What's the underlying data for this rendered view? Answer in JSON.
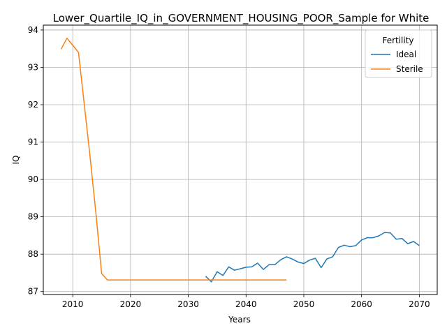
{
  "chart_data": {
    "type": "line",
    "title": "Lower_Quartile_IQ_in_GOVERNMENT_HOUSING_POOR_Sample for White",
    "xlabel": "Years",
    "ylabel": "IQ",
    "xlim": [
      2004.9,
      2073.1
    ],
    "ylim": [
      86.92,
      94.13
    ],
    "x_ticks": [
      2010,
      2020,
      2030,
      2040,
      2050,
      2060,
      2070
    ],
    "y_ticks": [
      87,
      88,
      89,
      90,
      91,
      92,
      93,
      94
    ],
    "grid": true,
    "legend": {
      "title": "Fertility",
      "placement": "upper right"
    },
    "series": [
      {
        "name": "Ideal",
        "color": "#1f77b4",
        "x": [
          2033,
          2034,
          2035,
          2036,
          2037,
          2038,
          2039,
          2040,
          2041,
          2042,
          2043,
          2044,
          2045,
          2046,
          2047,
          2048,
          2049,
          2050,
          2051,
          2052,
          2053,
          2054,
          2055,
          2056,
          2057,
          2058,
          2059,
          2060,
          2061,
          2062,
          2063,
          2064,
          2065,
          2066,
          2067,
          2068,
          2069,
          2070
        ],
        "y": [
          87.41,
          87.26,
          87.53,
          87.43,
          87.66,
          87.57,
          87.61,
          87.65,
          87.66,
          87.76,
          87.59,
          87.72,
          87.72,
          87.85,
          87.93,
          87.87,
          87.79,
          87.75,
          87.84,
          87.89,
          87.64,
          87.87,
          87.93,
          88.18,
          88.24,
          88.2,
          88.23,
          88.38,
          88.44,
          88.44,
          88.49,
          88.58,
          88.57,
          88.4,
          88.42,
          88.28,
          88.34,
          88.23
        ]
      },
      {
        "name": "Sterile",
        "color": "#ff7f0e",
        "x": [
          2008,
          2009,
          2010,
          2011,
          2012,
          2013,
          2014,
          2015,
          2016,
          2017,
          2018,
          2019,
          2020,
          2021,
          2022,
          2023,
          2024,
          2025,
          2026,
          2027,
          2028,
          2029,
          2030,
          2031,
          2032,
          2033,
          2034,
          2035,
          2036,
          2037,
          2038,
          2039,
          2040,
          2041,
          2042,
          2043,
          2044,
          2045,
          2046,
          2047
        ],
        "y": [
          93.49,
          93.78,
          93.59,
          93.4,
          92.0,
          90.6,
          89.1,
          87.48,
          87.31,
          87.31,
          87.31,
          87.31,
          87.31,
          87.31,
          87.31,
          87.31,
          87.31,
          87.31,
          87.31,
          87.31,
          87.31,
          87.31,
          87.31,
          87.31,
          87.31,
          87.31,
          87.31,
          87.31,
          87.31,
          87.31,
          87.31,
          87.31,
          87.31,
          87.31,
          87.31,
          87.31,
          87.31,
          87.31,
          87.31,
          87.31
        ]
      }
    ]
  }
}
